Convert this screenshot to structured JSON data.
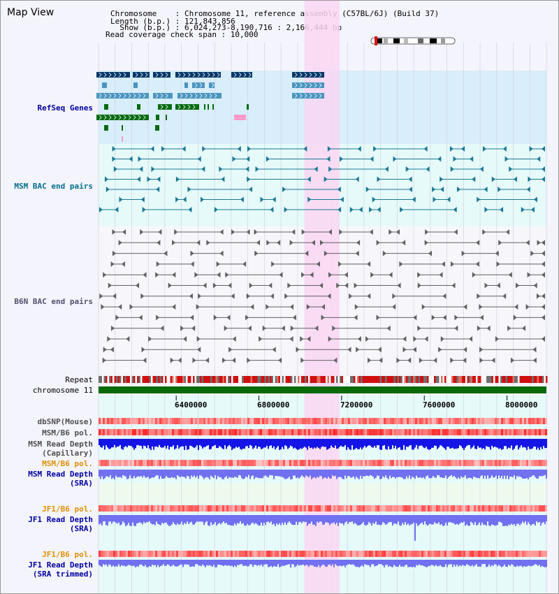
{
  "header": {
    "title": "Map View",
    "info_lines": [
      "Chromosome    : Chromosome 11, reference assembly (C57BL/6J) (Build 37)",
      "Length (b.p.) : 121,843,856",
      "  Show (b.p.) : 6,024,273-8,190,716 : 2,166,444 bp",
      "Read coverage check span : 10,000"
    ]
  },
  "view": {
    "start_bp": 6024273,
    "end_bp": 8190716,
    "highlight_start_bp": 7020000,
    "highlight_end_bp": 7190000
  },
  "tracks": {
    "refseq": "RefSeq Genes",
    "msm_bac": "MSM BAC end pairs",
    "b6n_bac": "B6N BAC end pairs",
    "repeat": "Repeat",
    "chromosome": "chromosome 11",
    "dbsnp": "dbSNP(Mouse)",
    "msm_b6_pol_1": "MSM/B6 pol.",
    "msm_read_depth_cap_1": "MSM Read Depth",
    "msm_read_depth_cap_2": "(Capillary)",
    "msm_b6_pol_2": "MSM/B6 pol.",
    "msm_read_depth_sra_1": "MSM Read Depth",
    "msm_read_depth_sra_2": "(SRA)",
    "jf1_b6_pol_1": "JF1/B6 pol.",
    "jf1_read_depth_sra_1": "JF1 Read Depth",
    "jf1_read_depth_sra_2": "(SRA)",
    "jf1_b6_pol_2": "JF1/B6 pol.",
    "jf1_read_depth_trim_1": "JF1 Read Depth",
    "jf1_read_depth_trim_2": "(SRA trimmed)"
  },
  "scale": {
    "ticks": [
      {
        "bp": 6400000,
        "label": "6400000"
      },
      {
        "bp": 6800000,
        "label": "6800000"
      },
      {
        "bp": 7200000,
        "label": "7200000"
      },
      {
        "bp": 7600000,
        "label": "7600000"
      },
      {
        "bp": 8000000,
        "label": "8000000"
      }
    ]
  },
  "colors": {
    "refseq_bg": "#d8eefa",
    "msm_bg": "#e6fafa",
    "b6n_bg": "#f7f7fb",
    "highlight": "#f9d6f2",
    "refseq_dark": "#06386a",
    "refseq_mid": "#4a95c0",
    "refseq_green": "#0a6a14",
    "refseq_pink": "#ff9acb",
    "msm_line": "#1a7896",
    "b6n_line": "#606060",
    "chromosome": "#0a6a0a",
    "depth_dark": "#1414e6",
    "depth_light": "#7070f0",
    "label_blue": "#0000a0",
    "label_orange": "#e09000",
    "label_teal": "#006e8c"
  }
}
